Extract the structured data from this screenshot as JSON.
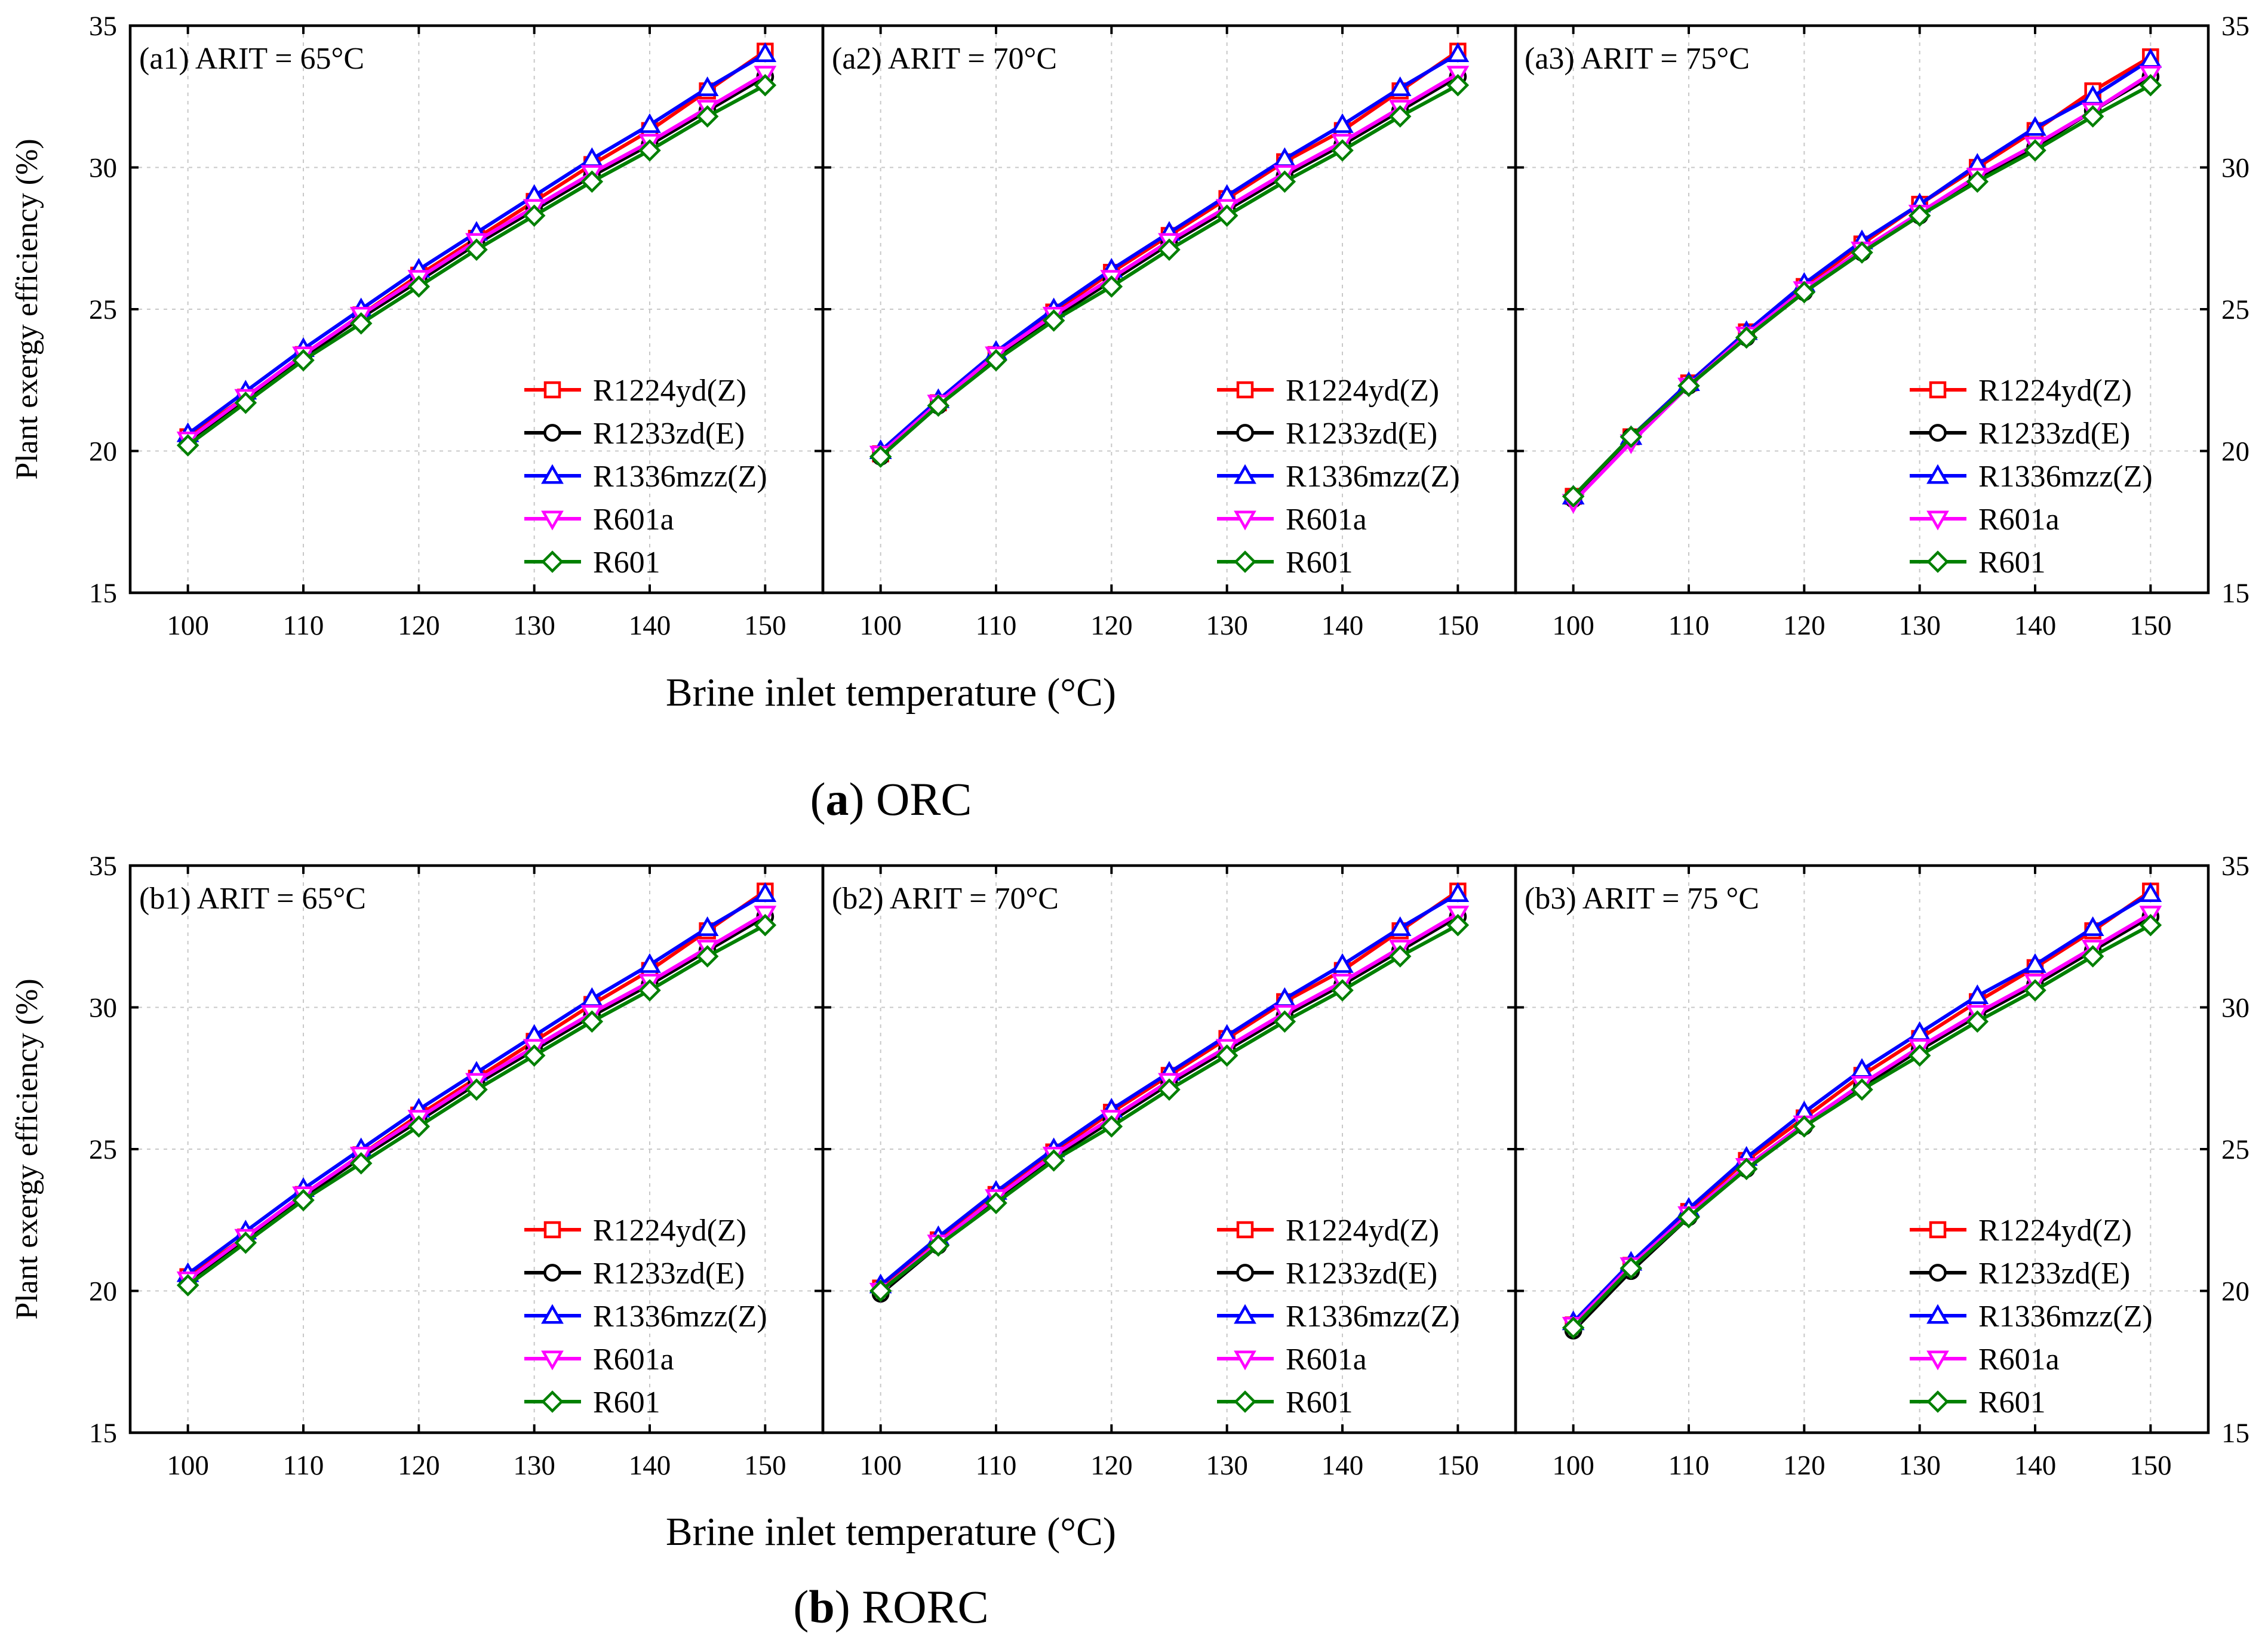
{
  "chart_data": {
    "type": "line",
    "figure_parts": [
      {
        "id": "a",
        "caption_letter": "a",
        "caption_text": " ORC",
        "caption_open": "(",
        "caption_close": ")",
        "x_axis_label": "Brine inlet temperature (°C)",
        "y_axis_label": "Plant exergy efficiency (%)",
        "panels": [
          {
            "title": "(a1) ARIT = 65°C",
            "x": [
              100,
              105,
              110,
              115,
              120,
              125,
              130,
              135,
              140,
              145,
              150
            ],
            "series": [
              {
                "name": "R1224yd(Z)",
                "values": [
                  20.5,
                  21.9,
                  23.4,
                  24.8,
                  26.2,
                  27.5,
                  28.8,
                  30.1,
                  31.3,
                  32.7,
                  34.1
                ]
              },
              {
                "name": "R1233zd(E)",
                "values": [
                  20.3,
                  21.8,
                  23.3,
                  24.7,
                  26.0,
                  27.3,
                  28.5,
                  29.7,
                  30.8,
                  32.0,
                  33.2
                ]
              },
              {
                "name": "R1336mzz(Z)",
                "values": [
                  20.6,
                  22.1,
                  23.6,
                  25.0,
                  26.4,
                  27.7,
                  29.0,
                  30.3,
                  31.5,
                  32.8,
                  34.0
                ]
              },
              {
                "name": "R601a",
                "values": [
                  20.4,
                  21.9,
                  23.4,
                  24.8,
                  26.1,
                  27.4,
                  28.6,
                  29.8,
                  30.9,
                  32.1,
                  33.3
                ]
              },
              {
                "name": "R601",
                "values": [
                  20.2,
                  21.7,
                  23.2,
                  24.5,
                  25.8,
                  27.1,
                  28.3,
                  29.5,
                  30.6,
                  31.8,
                  32.9
                ]
              }
            ]
          },
          {
            "title": "(a2) ARIT = 70°C",
            "x": [
              100,
              105,
              110,
              115,
              120,
              125,
              130,
              135,
              140,
              145,
              150
            ],
            "series": [
              {
                "name": "R1224yd(Z)",
                "values": [
                  19.9,
                  21.7,
                  23.4,
                  24.9,
                  26.3,
                  27.6,
                  28.9,
                  30.2,
                  31.3,
                  32.7,
                  34.1
                ]
              },
              {
                "name": "R1233zd(E)",
                "values": [
                  19.8,
                  21.6,
                  23.3,
                  24.7,
                  26.0,
                  27.3,
                  28.5,
                  29.7,
                  30.8,
                  32.0,
                  33.2
                ]
              },
              {
                "name": "R1336mzz(Z)",
                "values": [
                  20.0,
                  21.8,
                  23.5,
                  25.0,
                  26.4,
                  27.7,
                  29.0,
                  30.3,
                  31.5,
                  32.8,
                  34.0
                ]
              },
              {
                "name": "R601a",
                "values": [
                  19.9,
                  21.7,
                  23.4,
                  24.8,
                  26.1,
                  27.4,
                  28.6,
                  29.8,
                  30.9,
                  32.1,
                  33.3
                ]
              },
              {
                "name": "R601",
                "values": [
                  19.8,
                  21.6,
                  23.2,
                  24.6,
                  25.8,
                  27.1,
                  28.3,
                  29.5,
                  30.6,
                  31.8,
                  32.9
                ]
              }
            ]
          },
          {
            "title": "(a3) ARIT = 75°C",
            "x": [
              100,
              105,
              110,
              115,
              120,
              125,
              130,
              135,
              140,
              145,
              150
            ],
            "series": [
              {
                "name": "R1224yd(Z)",
                "values": [
                  18.4,
                  20.5,
                  22.4,
                  24.2,
                  25.8,
                  27.3,
                  28.7,
                  30.0,
                  31.3,
                  32.7,
                  33.9
                ]
              },
              {
                "name": "R1233zd(E)",
                "values": [
                  18.3,
                  20.5,
                  22.3,
                  24.0,
                  25.6,
                  27.0,
                  28.3,
                  29.6,
                  30.7,
                  32.0,
                  33.2
                ]
              },
              {
                "name": "R1336mzz(Z)",
                "values": [
                  18.4,
                  20.5,
                  22.4,
                  24.2,
                  25.9,
                  27.4,
                  28.7,
                  30.1,
                  31.4,
                  32.5,
                  33.8
                ]
              },
              {
                "name": "R601a",
                "values": [
                  18.2,
                  20.3,
                  22.3,
                  24.1,
                  25.7,
                  27.1,
                  28.4,
                  29.7,
                  30.8,
                  32.0,
                  33.3
                ]
              },
              {
                "name": "R601",
                "values": [
                  18.4,
                  20.5,
                  22.3,
                  24.0,
                  25.6,
                  27.0,
                  28.3,
                  29.5,
                  30.6,
                  31.8,
                  32.9
                ]
              }
            ]
          }
        ]
      },
      {
        "id": "b",
        "caption_letter": "b",
        "caption_text": " RORC",
        "caption_open": "(",
        "caption_close": ")",
        "x_axis_label": "Brine inlet temperature (°C)",
        "y_axis_label": "Plant exergy efficiency (%)",
        "panels": [
          {
            "title": "(b1) ARIT = 65°C",
            "x": [
              100,
              105,
              110,
              115,
              120,
              125,
              130,
              135,
              140,
              145,
              150
            ],
            "series": [
              {
                "name": "R1224yd(Z)",
                "values": [
                  20.5,
                  21.9,
                  23.4,
                  24.8,
                  26.2,
                  27.5,
                  28.8,
                  30.1,
                  31.3,
                  32.7,
                  34.1
                ]
              },
              {
                "name": "R1233zd(E)",
                "values": [
                  20.3,
                  21.8,
                  23.3,
                  24.7,
                  26.0,
                  27.3,
                  28.5,
                  29.7,
                  30.8,
                  32.0,
                  33.2
                ]
              },
              {
                "name": "R1336mzz(Z)",
                "values": [
                  20.6,
                  22.1,
                  23.6,
                  25.0,
                  26.4,
                  27.7,
                  29.0,
                  30.3,
                  31.5,
                  32.8,
                  34.0
                ]
              },
              {
                "name": "R601a",
                "values": [
                  20.4,
                  21.9,
                  23.4,
                  24.8,
                  26.1,
                  27.4,
                  28.6,
                  29.8,
                  30.9,
                  32.1,
                  33.3
                ]
              },
              {
                "name": "R601",
                "values": [
                  20.2,
                  21.7,
                  23.2,
                  24.5,
                  25.8,
                  27.1,
                  28.3,
                  29.5,
                  30.6,
                  31.8,
                  32.9
                ]
              }
            ]
          },
          {
            "title": "(b2) ARIT = 70°C",
            "x": [
              100,
              105,
              110,
              115,
              120,
              125,
              130,
              135,
              140,
              145,
              150
            ],
            "series": [
              {
                "name": "R1224yd(Z)",
                "values": [
                  20.1,
                  21.8,
                  23.4,
                  24.9,
                  26.3,
                  27.6,
                  28.9,
                  30.2,
                  31.3,
                  32.7,
                  34.1
                ]
              },
              {
                "name": "R1233zd(E)",
                "values": [
                  19.9,
                  21.6,
                  23.2,
                  24.7,
                  26.0,
                  27.3,
                  28.5,
                  29.7,
                  30.8,
                  32.0,
                  33.2
                ]
              },
              {
                "name": "R1336mzz(Z)",
                "values": [
                  20.2,
                  21.9,
                  23.5,
                  25.0,
                  26.4,
                  27.7,
                  29.0,
                  30.3,
                  31.5,
                  32.8,
                  34.0
                ]
              },
              {
                "name": "R601a",
                "values": [
                  20.0,
                  21.7,
                  23.3,
                  24.8,
                  26.1,
                  27.4,
                  28.6,
                  29.8,
                  30.9,
                  32.1,
                  33.3
                ]
              },
              {
                "name": "R601",
                "values": [
                  20.0,
                  21.6,
                  23.1,
                  24.6,
                  25.8,
                  27.1,
                  28.3,
                  29.5,
                  30.6,
                  31.8,
                  32.9
                ]
              }
            ]
          },
          {
            "title": "(b3) ARIT = 75 °C",
            "x": [
              100,
              105,
              110,
              115,
              120,
              125,
              130,
              135,
              140,
              145,
              150
            ],
            "series": [
              {
                "name": "R1224yd(Z)",
                "values": [
                  18.8,
                  20.9,
                  22.8,
                  24.6,
                  26.1,
                  27.6,
                  28.9,
                  30.2,
                  31.4,
                  32.7,
                  34.1
                ]
              },
              {
                "name": "R1233zd(E)",
                "values": [
                  18.6,
                  20.7,
                  22.6,
                  24.3,
                  25.8,
                  27.2,
                  28.5,
                  29.7,
                  30.8,
                  32.0,
                  33.2
                ]
              },
              {
                "name": "R1336mzz(Z)",
                "values": [
                  18.9,
                  21.0,
                  22.9,
                  24.7,
                  26.3,
                  27.8,
                  29.1,
                  30.4,
                  31.5,
                  32.8,
                  34.0
                ]
              },
              {
                "name": "R601a",
                "values": [
                  18.8,
                  20.9,
                  22.7,
                  24.4,
                  25.9,
                  27.3,
                  28.6,
                  29.8,
                  30.9,
                  32.1,
                  33.3
                ]
              },
              {
                "name": "R601",
                "values": [
                  18.7,
                  20.8,
                  22.6,
                  24.3,
                  25.8,
                  27.1,
                  28.3,
                  29.5,
                  30.6,
                  31.8,
                  32.9
                ]
              }
            ]
          }
        ]
      }
    ],
    "series_styles": [
      {
        "name": "R1224yd(Z)",
        "color": "#ff0000",
        "marker": "square"
      },
      {
        "name": "R1233zd(E)",
        "color": "#000000",
        "marker": "circle"
      },
      {
        "name": "R1336mzz(Z)",
        "color": "#0000ff",
        "marker": "triangle-up"
      },
      {
        "name": "R601a",
        "color": "#ff00ff",
        "marker": "triangle-down"
      },
      {
        "name": "R601",
        "color": "#008000",
        "marker": "diamond"
      }
    ],
    "xlim": [
      95,
      155
    ],
    "ylim": [
      15,
      35
    ],
    "x_ticks": [
      100,
      110,
      120,
      130,
      140,
      150
    ],
    "y_ticks": [
      15,
      20,
      25,
      30,
      35
    ],
    "grid": true,
    "legend_location": "lower-right"
  }
}
